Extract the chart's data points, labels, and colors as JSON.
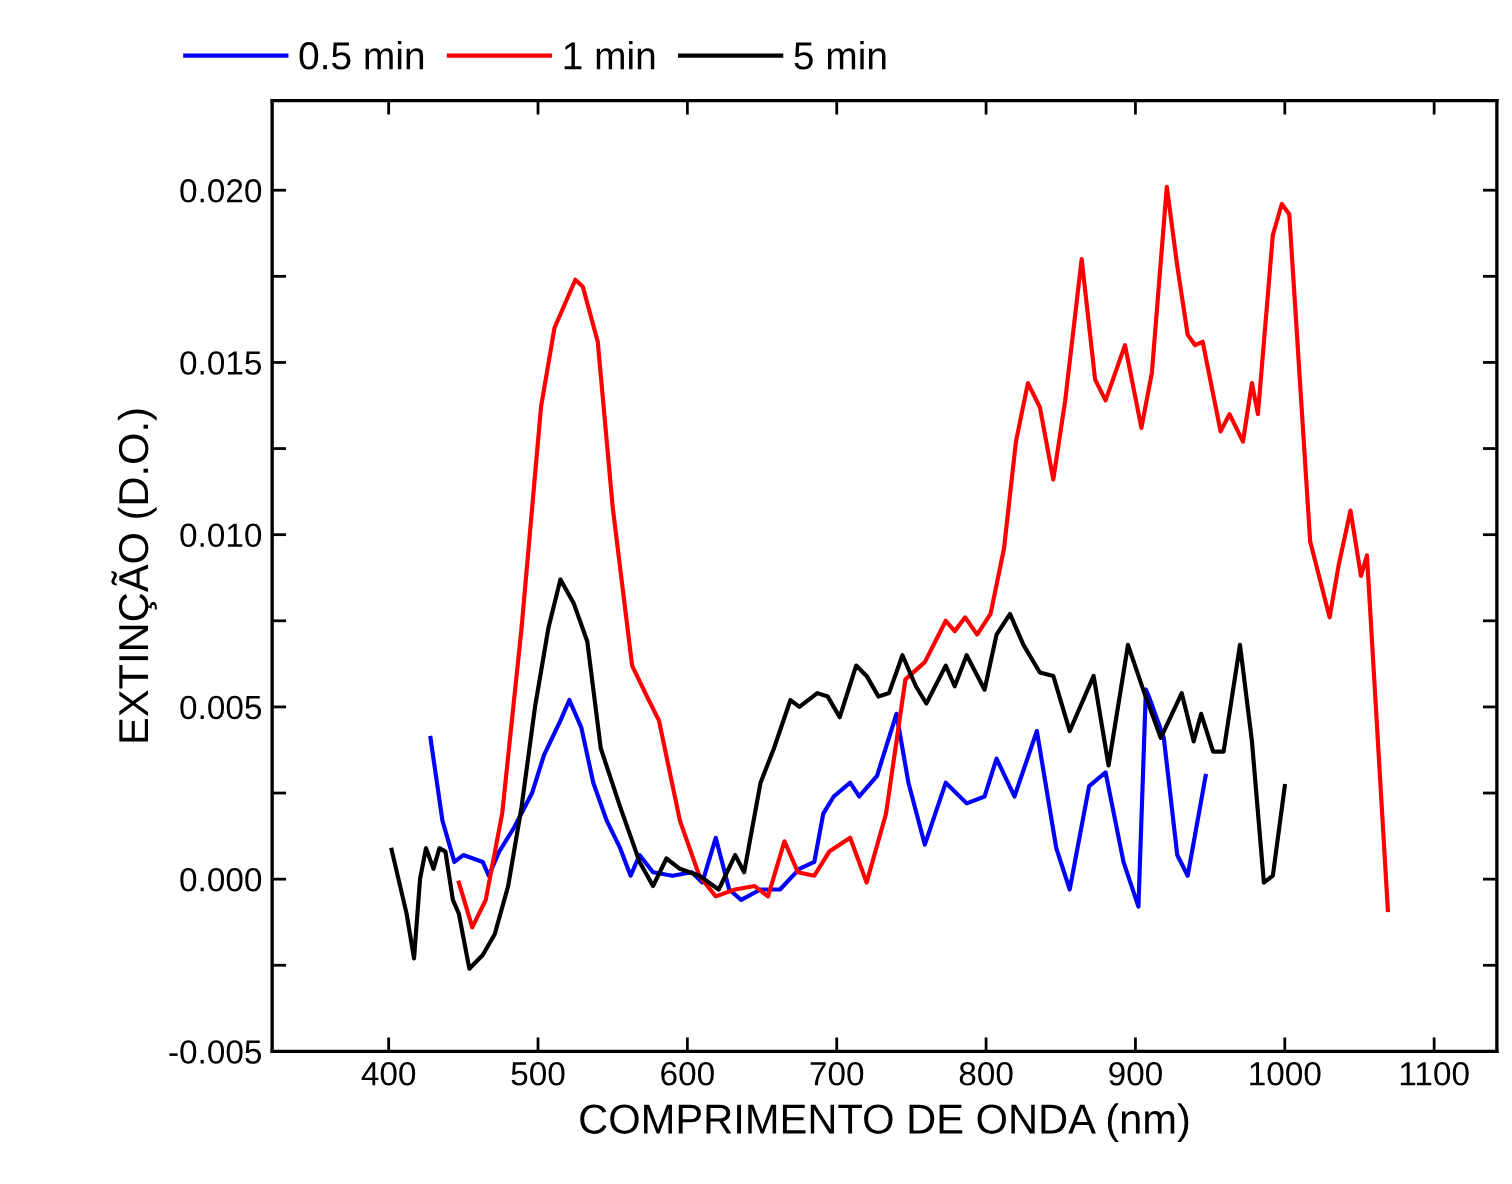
{
  "chart_data": {
    "type": "line",
    "xlabel": "COMPRIMENTO DE ONDA (nm)",
    "ylabel": "EXTINÇÃO (D.O.)",
    "xlim": [
      322,
      1142
    ],
    "xticks": [
      400,
      500,
      600,
      700,
      800,
      900,
      1000,
      1100
    ],
    "ylim": [
      -0.005,
      0.0226
    ],
    "yticks": [
      {
        "value": -0.005,
        "label": "-0.005"
      },
      {
        "value": -0.0025,
        "label": null
      },
      {
        "value": 0,
        "label": "0.000"
      },
      {
        "value": 0.0025,
        "label": null
      },
      {
        "value": 0.005,
        "label": "0.005"
      },
      {
        "value": 0.0075,
        "label": null
      },
      {
        "value": 0.01,
        "label": "0.010"
      },
      {
        "value": 0.0125,
        "label": null
      },
      {
        "value": 0.015,
        "label": "0.015"
      },
      {
        "value": 0.0175,
        "label": null
      },
      {
        "value": 0.02,
        "label": "0.020"
      }
    ],
    "grid": false,
    "legend": "top",
    "marker": "none",
    "line_style": "solid",
    "series": [
      {
        "name": "0.5 min",
        "color": "#0000ff",
        "x": [
          428,
          436,
          444,
          450,
          463,
          467,
          474,
          484,
          496,
          504,
          515,
          521,
          529,
          537,
          546,
          555,
          562,
          568,
          577,
          590,
          603,
          610,
          619,
          628,
          636,
          649,
          662,
          675,
          685,
          691,
          698,
          709,
          715,
          727,
          740,
          748,
          759,
          773,
          787,
          799,
          807,
          819,
          834,
          847,
          856,
          869,
          880,
          892,
          902,
          907,
          909,
          919,
          928,
          935,
          947
        ],
        "values": [
          0.0041,
          0.0017,
          0.0005,
          0.0007,
          0.0005,
          0.0001,
          0.0008,
          0.0015,
          0.0025,
          0.0036,
          0.0046,
          0.0052,
          0.0044,
          0.0028,
          0.0017,
          0.0009,
          0.0001,
          0.0007,
          0.0002,
          0.0001,
          0.0002,
          -0.0001,
          0.0012,
          -0.0003,
          -0.0006,
          -0.0003,
          -0.0003,
          0.0003,
          0.0005,
          0.0019,
          0.0024,
          0.0028,
          0.0024,
          0.003,
          0.0048,
          0.0028,
          0.001,
          0.0028,
          0.0022,
          0.0024,
          0.0035,
          0.0024,
          0.0043,
          0.0009,
          -0.0003,
          0.0027,
          0.0031,
          0.0005,
          -0.0008,
          0.0055,
          0.0053,
          0.0041,
          0.0007,
          0.0001,
          0.003
        ]
      },
      {
        "name": "1 min",
        "color": "#ff0000",
        "x": [
          447,
          456,
          465,
          476,
          489,
          502,
          511,
          525,
          530,
          540,
          550,
          563,
          573,
          581,
          595,
          608,
          619,
          632,
          645,
          654,
          665,
          674,
          685,
          695,
          709,
          720,
          733,
          746,
          759,
          773,
          779,
          786,
          794,
          803,
          812,
          820,
          828,
          836,
          845,
          853,
          864,
          873,
          880,
          893,
          904,
          911,
          921,
          928,
          935,
          940,
          945,
          957,
          963,
          972,
          978,
          982,
          992,
          998,
          1003,
          1017,
          1030,
          1036,
          1044,
          1051,
          1055,
          1069
        ],
        "values": [
          -0.0001,
          -0.0014,
          -0.0006,
          0.0019,
          0.0073,
          0.0137,
          0.016,
          0.0174,
          0.0172,
          0.0156,
          0.0108,
          0.0062,
          0.0053,
          0.0046,
          0.0017,
          0.0001,
          -0.0005,
          -0.0003,
          -0.0002,
          -0.0005,
          0.0011,
          0.0002,
          0.0001,
          0.0008,
          0.0012,
          -0.0001,
          0.0019,
          0.0058,
          0.0063,
          0.0075,
          0.0072,
          0.0076,
          0.0071,
          0.0077,
          0.0096,
          0.0127,
          0.0144,
          0.0137,
          0.0116,
          0.0139,
          0.018,
          0.0145,
          0.0139,
          0.0155,
          0.0131,
          0.0147,
          0.0201,
          0.0178,
          0.0158,
          0.0155,
          0.0156,
          0.013,
          0.0135,
          0.0127,
          0.0144,
          0.0135,
          0.0187,
          0.0196,
          0.0193,
          0.0098,
          0.0076,
          0.0091,
          0.0107,
          0.0088,
          0.0094,
          -0.0009
        ]
      },
      {
        "name": "5 min",
        "color": "#000000",
        "x": [
          402,
          412,
          417,
          421,
          425,
          430,
          434,
          438,
          443,
          447,
          454,
          463,
          471,
          480,
          489,
          498,
          507,
          515,
          524,
          533,
          542,
          555,
          568,
          577,
          586,
          595,
          608,
          621,
          632,
          638,
          649,
          658,
          669,
          675,
          687,
          694,
          702,
          713,
          720,
          728,
          735,
          744,
          753,
          760,
          773,
          779,
          787,
          799,
          807,
          816,
          825,
          836,
          845,
          856,
          872,
          882,
          895,
          906,
          917,
          931,
          939,
          944,
          952,
          959,
          970,
          978,
          986,
          992,
          1000
        ],
        "values": [
          0.00085,
          -0.001,
          -0.0023,
          0.0,
          0.0009,
          0.0003,
          0.0009,
          0.0008,
          -0.0006,
          -0.001,
          -0.0026,
          -0.0022,
          -0.0016,
          -0.0002,
          0.0021,
          0.005,
          0.0073,
          0.0087,
          0.008,
          0.0069,
          0.0038,
          0.0021,
          0.0005,
          -0.0002,
          0.0006,
          0.0003,
          0.0001,
          -0.0003,
          0.0007,
          0.0002,
          0.0028,
          0.0038,
          0.0052,
          0.005,
          0.0054,
          0.0053,
          0.0047,
          0.0062,
          0.0059,
          0.0053,
          0.0054,
          0.0065,
          0.0056,
          0.0051,
          0.0062,
          0.0056,
          0.0065,
          0.0055,
          0.0071,
          0.0077,
          0.0068,
          0.006,
          0.0059,
          0.0043,
          0.0059,
          0.0033,
          0.0068,
          0.0054,
          0.0041,
          0.0054,
          0.004,
          0.0048,
          0.0037,
          0.0037,
          0.0068,
          0.004,
          -0.0001,
          0.0001,
          0.0027
        ]
      }
    ]
  }
}
